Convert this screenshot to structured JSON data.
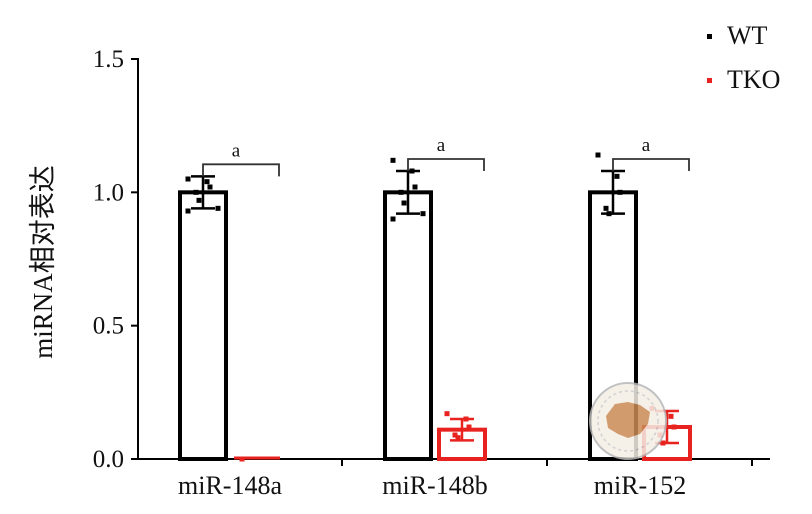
{
  "chart_data": {
    "type": "bar",
    "ylabel": "miRNA相对表达",
    "xlabel": "",
    "title": "",
    "ylim": [
      0,
      1.5
    ],
    "yticks": [
      "0.0",
      "0.5",
      "1.0",
      "1.5"
    ],
    "ytick_values": [
      0,
      0.5,
      1.0,
      1.5
    ],
    "categories": [
      "miR-148a",
      "miR-148b",
      "miR-152"
    ],
    "series": [
      {
        "name": "WT",
        "color": "#000000",
        "values": [
          1.0,
          1.0,
          1.0
        ],
        "errors": [
          0.06,
          0.08,
          0.08
        ],
        "points": [
          [
            1.05,
            1.04,
            1.02,
            1.0,
            0.97,
            0.94,
            0.93
          ],
          [
            1.12,
            1.08,
            1.02,
            1.0,
            0.96,
            0.92,
            0.9
          ],
          [
            1.14,
            1.06,
            1.0,
            0.94,
            0.92
          ]
        ]
      },
      {
        "name": "TKO",
        "color": "#e8231f",
        "values": [
          0.0,
          0.11,
          0.12
        ],
        "errors": [
          0.0,
          0.04,
          0.06
        ],
        "points": [
          [
            0.0
          ],
          [
            0.17,
            0.15,
            0.12,
            0.09,
            0.08
          ],
          [
            0.19,
            0.16,
            0.12,
            0.09,
            0.06
          ]
        ]
      }
    ],
    "significance": [
      {
        "category": "miR-148a",
        "label": "a"
      },
      {
        "category": "miR-148b",
        "label": "a"
      },
      {
        "category": "miR-152",
        "label": "a"
      }
    ],
    "legend": {
      "position": "top-right",
      "entries": [
        "WT",
        "TKO"
      ]
    },
    "grid": false
  }
}
